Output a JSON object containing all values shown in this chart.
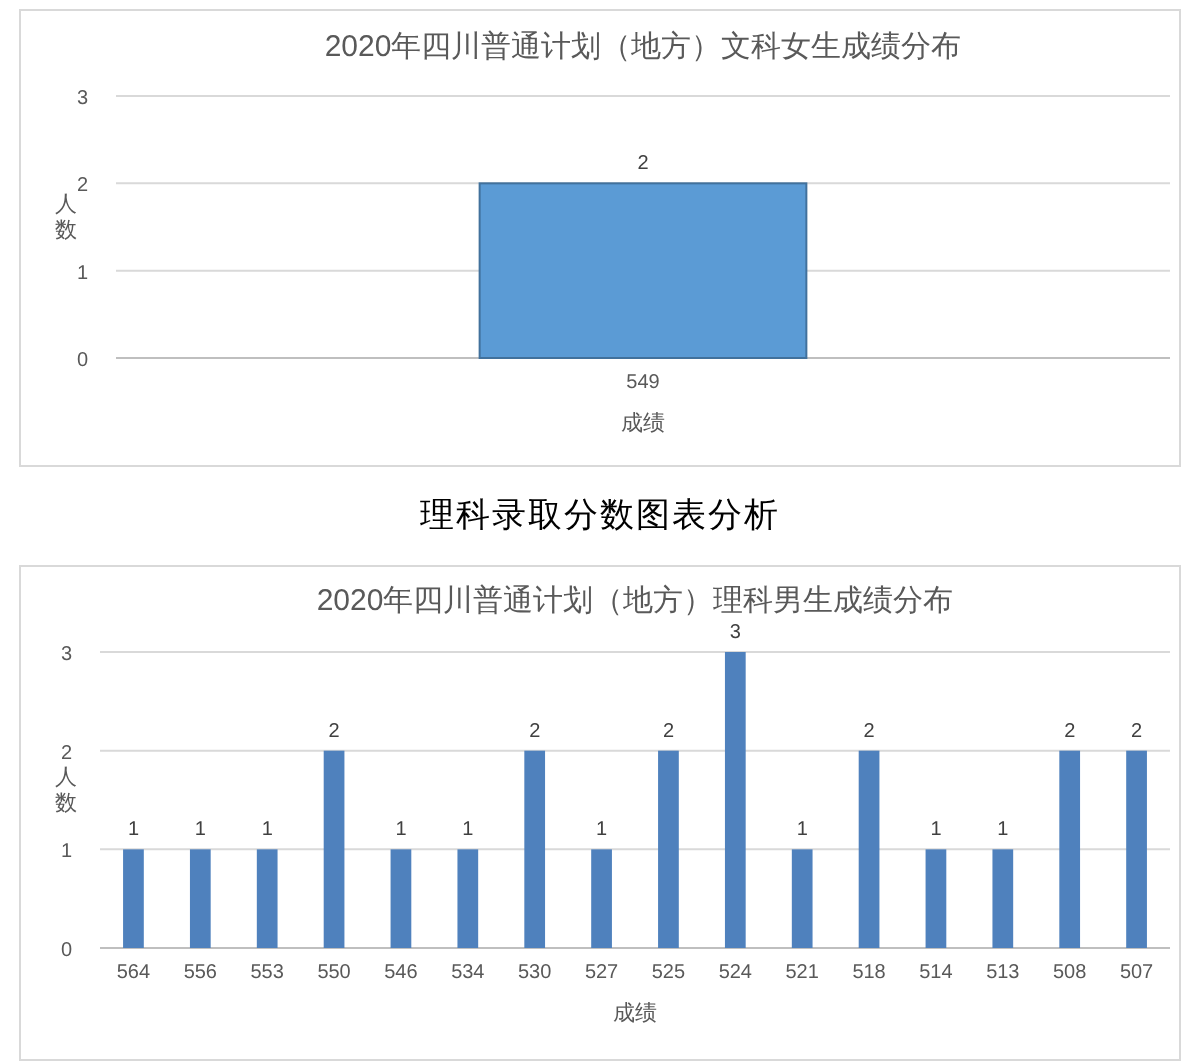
{
  "chart_data": [
    {
      "type": "bar",
      "title": "2020年四川普通计划（地方）文科女生成绩分布",
      "xlabel": "成绩",
      "ylabel": "人数",
      "categories": [
        "549"
      ],
      "values": [
        2
      ],
      "color": "#5b9bd5",
      "ylim": [
        0,
        3
      ],
      "yticks": [
        0,
        1,
        2,
        3
      ],
      "grid": "y",
      "data_labels": true
    },
    {
      "type": "bar",
      "title": "2020年四川普通计划（地方）理科男生成绩分布",
      "xlabel": "成绩",
      "ylabel": "人数",
      "annotations": [
        "理科录取分数图表分析"
      ],
      "categories": [
        "564",
        "556",
        "553",
        "550",
        "546",
        "534",
        "530",
        "527",
        "525",
        "524",
        "521",
        "518",
        "514",
        "513",
        "508",
        "507"
      ],
      "values": [
        1,
        1,
        1,
        2,
        1,
        1,
        2,
        1,
        2,
        3,
        1,
        2,
        1,
        1,
        2,
        2
      ],
      "color": "#4f81bd",
      "ylim": [
        0,
        3
      ],
      "yticks": [
        0,
        1,
        2,
        3
      ],
      "grid": "y",
      "data_labels": true
    }
  ]
}
